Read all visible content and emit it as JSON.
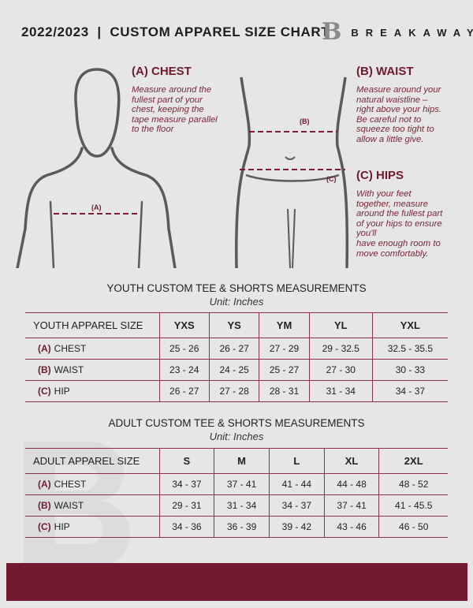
{
  "header": {
    "title": "2022/2023  |  CUSTOM APPAREL SIZE CHART",
    "brand": "BREAKAWAY",
    "logo_letter": "B"
  },
  "chest": {
    "heading": "(A) CHEST",
    "description": [
      "Measure around the",
      "fullest part of your",
      "chest, keeping the",
      "tape measure parallel",
      "to the floor"
    ],
    "marker": "(A)"
  },
  "waist": {
    "heading": "(B) WAIST",
    "description": [
      "Measure around your",
      "natural waistline –",
      "right above your hips.",
      "Be careful not to",
      "squeeze too tight to",
      "allow a little give."
    ],
    "marker": "(B)"
  },
  "hips": {
    "heading": "(C) HIPS",
    "description": [
      "With your feet",
      "together, measure",
      "around the fullest part",
      "of your hips to ensure",
      "you'll",
      "have enough room to",
      "move comfortably."
    ],
    "marker": "(C)"
  },
  "colors": {
    "accent": "#721b30",
    "background": "#e6e6e7"
  },
  "youth": {
    "title": "YOUTH CUSTOM TEE & SHORTS MEASUREMENTS",
    "unit": "Unit: Inches",
    "size_label": "YOUTH APPAREL SIZE",
    "sizes": [
      "YXS",
      "YS",
      "YM",
      "YL",
      "YXL"
    ],
    "rows": [
      {
        "code": "(A)",
        "name": "CHEST",
        "values": [
          "25 - 26",
          "26 - 27",
          "27 - 29",
          "29 - 32.5",
          "32.5 - 35.5"
        ]
      },
      {
        "code": "(B)",
        "name": "WAIST",
        "values": [
          "23 - 24",
          "24 - 25",
          "25 - 27",
          "27 - 30",
          "30 - 33"
        ]
      },
      {
        "code": "(C)",
        "name": "HIP",
        "values": [
          "26 - 27",
          "27 - 28",
          "28 - 31",
          "31 - 34",
          "34 - 37"
        ]
      }
    ]
  },
  "adult": {
    "title": "ADULT CUSTOM TEE & SHORTS MEASUREMENTS",
    "unit": "Unit: Inches",
    "size_label": "ADULT APPAREL SIZE",
    "sizes": [
      "S",
      "M",
      "L",
      "XL",
      "2XL"
    ],
    "rows": [
      {
        "code": "(A)",
        "name": "CHEST",
        "values": [
          "34 - 37",
          "37 - 41",
          "41 - 44",
          "44 - 48",
          "48 - 52"
        ]
      },
      {
        "code": "(B)",
        "name": "WAIST",
        "values": [
          "29 - 31",
          "31 - 34",
          "34 - 37",
          "37 - 41",
          "41 - 45.5"
        ]
      },
      {
        "code": "(C)",
        "name": "HIP",
        "values": [
          "34 - 36",
          "36 - 39",
          "39 - 42",
          "43 - 46",
          "46 - 50"
        ]
      }
    ]
  }
}
